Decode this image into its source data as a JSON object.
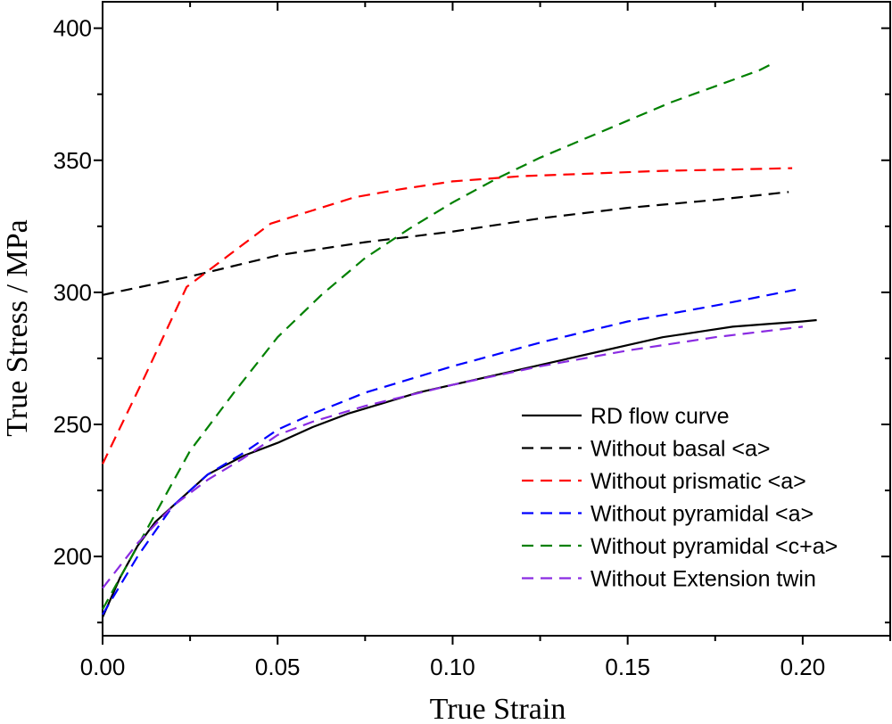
{
  "chart_data": {
    "type": "line",
    "title": "",
    "xlabel": "True Strain",
    "ylabel": "True Stress / MPa",
    "xlim": [
      0.0,
      0.225
    ],
    "ylim": [
      170,
      410
    ],
    "x_ticks": [
      0.0,
      0.05,
      0.1,
      0.15,
      0.2
    ],
    "x_tick_labels": [
      "0.00",
      "0.05",
      "0.10",
      "0.15",
      "0.20"
    ],
    "y_ticks": [
      200,
      250,
      300,
      350,
      400
    ],
    "y_tick_labels": [
      "200",
      "250",
      "300",
      "350",
      "400"
    ],
    "legend_position": "bottom-right",
    "series": [
      {
        "name": "RD flow curve",
        "color": "#000000",
        "dash": "solid",
        "x": [
          0,
          0.005,
          0.01,
          0.015,
          0.02,
          0.025,
          0.03,
          0.04,
          0.05,
          0.06,
          0.07,
          0.08,
          0.09,
          0.1,
          0.11,
          0.12,
          0.13,
          0.14,
          0.15,
          0.16,
          0.17,
          0.18,
          0.19,
          0.2,
          0.204
        ],
        "y": [
          177,
          192,
          204,
          213,
          219,
          225,
          231,
          238,
          243,
          249,
          254,
          258,
          262,
          265,
          268,
          271,
          274,
          277,
          280,
          283,
          285,
          287,
          288,
          289,
          289.5
        ]
      },
      {
        "name": "Without basal <a>",
        "color": "#000000",
        "dash": "dashed",
        "x": [
          0,
          0.025,
          0.05,
          0.075,
          0.1,
          0.125,
          0.15,
          0.175,
          0.196
        ],
        "y": [
          299,
          306,
          314,
          319,
          323,
          328,
          332,
          335,
          338
        ]
      },
      {
        "name": "Without prismatic <a>",
        "color": "#ff0000",
        "dash": "dashed",
        "x": [
          0,
          0.012,
          0.024,
          0.036,
          0.048,
          0.06,
          0.072,
          0.085,
          0.1,
          0.12,
          0.14,
          0.16,
          0.18,
          0.197
        ],
        "y": [
          235,
          268,
          302,
          314,
          326,
          331,
          336,
          339,
          342,
          344,
          345,
          346,
          346.5,
          347
        ]
      },
      {
        "name": "Without pyramidal <a>",
        "color": "#0000ff",
        "dash": "dashed",
        "x": [
          0,
          0.01,
          0.02,
          0.03,
          0.04,
          0.05,
          0.06,
          0.075,
          0.1,
          0.125,
          0.15,
          0.175,
          0.198
        ],
        "y": [
          178,
          200,
          219,
          231,
          239,
          248,
          254,
          262,
          272,
          281,
          289,
          295,
          301
        ]
      },
      {
        "name": "Without pyramidal <c+a>",
        "color": "#008000",
        "dash": "dashed",
        "x": [
          0,
          0.0125,
          0.025,
          0.0375,
          0.05,
          0.0625,
          0.075,
          0.0875,
          0.1,
          0.1125,
          0.125,
          0.1375,
          0.15,
          0.1625,
          0.175,
          0.1875,
          0.192
        ],
        "y": [
          180,
          210,
          240,
          262,
          283,
          299,
          313,
          324,
          334,
          343,
          351,
          358,
          365,
          372,
          378,
          384,
          387
        ]
      },
      {
        "name": "Without Extension twin",
        "color": "#8a2be2",
        "dash": "dashed",
        "x": [
          0,
          0.01,
          0.02,
          0.03,
          0.04,
          0.05,
          0.06,
          0.075,
          0.1,
          0.125,
          0.15,
          0.175,
          0.2
        ],
        "y": [
          188,
          205,
          219,
          229,
          237,
          246,
          251,
          257,
          265,
          272,
          278,
          283,
          287
        ]
      }
    ]
  }
}
